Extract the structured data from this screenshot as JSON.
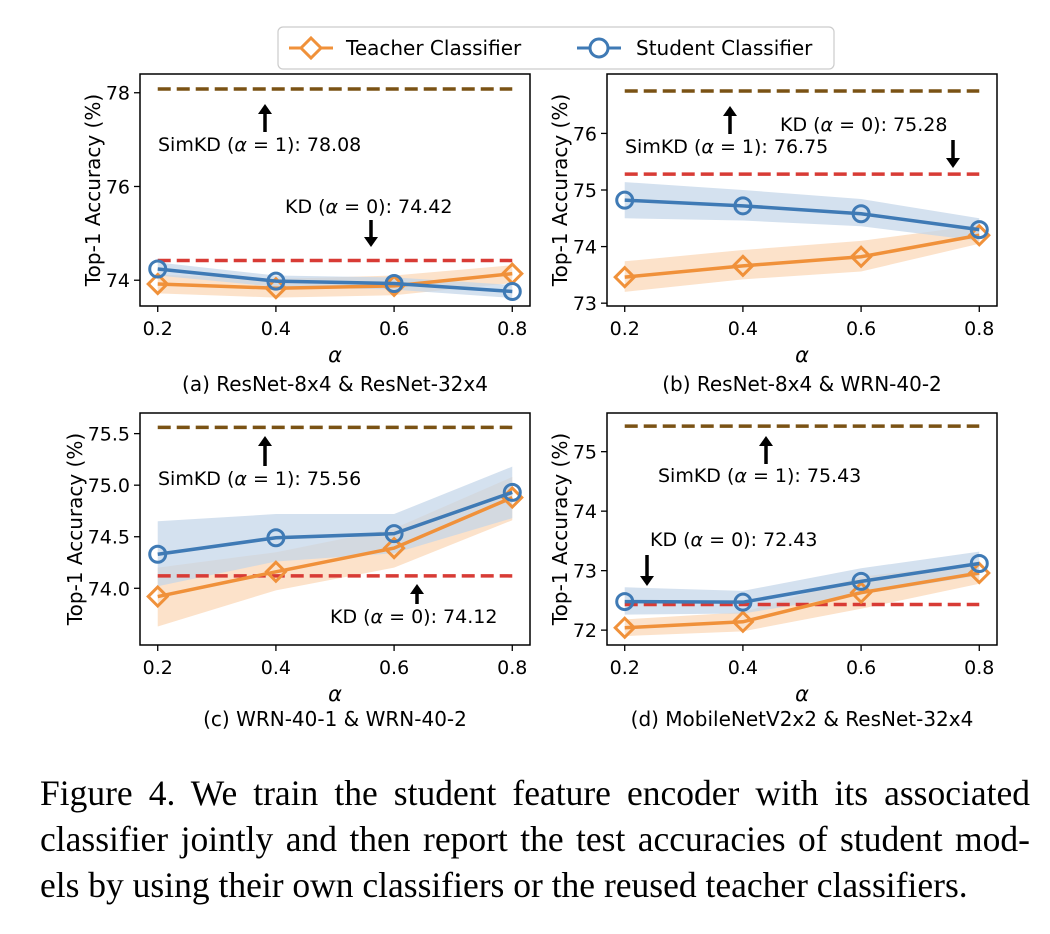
{
  "legend": {
    "teacher": "Teacher Classifier",
    "student": "Student Classifier"
  },
  "colors": {
    "teacher": "#f0913a",
    "student": "#3f7ab5",
    "simkd_line": "#7a5214",
    "kd_line": "#d83b35",
    "teacher_band": "#fbd8b8",
    "student_band": "#c4d6e9"
  },
  "chart_data": [
    {
      "type": "line",
      "caption": "(a) ResNet-8x4 & ResNet-32x4",
      "xlabel": "α",
      "ylabel": "Top-1 Accuracy (%)",
      "x": [
        0.2,
        0.4,
        0.6,
        0.8
      ],
      "xticks": [
        "0.2",
        "0.4",
        "0.6",
        "0.8"
      ],
      "yticks": [
        74,
        76,
        78
      ],
      "yticklabels": [
        "74",
        "76",
        "78"
      ],
      "ylim": [
        73.45,
        78.4
      ],
      "series": [
        {
          "name": "Teacher Classifier",
          "values": [
            73.92,
            73.83,
            73.88,
            74.14
          ],
          "band_lo": [
            73.72,
            73.63,
            73.68,
            73.94
          ],
          "band_hi": [
            74.12,
            74.03,
            74.1,
            74.32
          ]
        },
        {
          "name": "Student Classifier",
          "values": [
            74.24,
            73.98,
            73.93,
            73.76
          ],
          "band_lo": [
            74.1,
            73.86,
            73.8,
            73.62
          ],
          "band_hi": [
            74.38,
            74.1,
            74.06,
            73.9
          ]
        }
      ],
      "simkd_value": 78.08,
      "kd_value": 74.42,
      "simkd_label": "SimKD (α = 1): 78.08",
      "kd_label": "KD (α = 0): 74.42"
    },
    {
      "type": "line",
      "caption": "(b) ResNet-8x4 & WRN-40-2",
      "xlabel": "α",
      "ylabel": "Top-1 Accuracy (%)",
      "x": [
        0.2,
        0.4,
        0.6,
        0.8
      ],
      "xticks": [
        "0.2",
        "0.4",
        "0.6",
        "0.8"
      ],
      "yticks": [
        73,
        74,
        75,
        76
      ],
      "yticklabels": [
        "73",
        "74",
        "75",
        "76"
      ],
      "ylim": [
        72.95,
        77.05
      ],
      "series": [
        {
          "name": "Teacher Classifier",
          "values": [
            73.46,
            73.66,
            73.82,
            74.2
          ],
          "band_lo": [
            73.2,
            73.42,
            73.56,
            74.05
          ],
          "band_hi": [
            73.74,
            73.94,
            74.1,
            74.38
          ]
        },
        {
          "name": "Student Classifier",
          "values": [
            74.82,
            74.72,
            74.58,
            74.3
          ],
          "band_lo": [
            74.5,
            74.46,
            74.36,
            74.1
          ],
          "band_hi": [
            75.14,
            75.0,
            74.84,
            74.5
          ]
        }
      ],
      "simkd_value": 76.75,
      "kd_value": 75.28,
      "simkd_label": "SimKD (α = 1): 76.75",
      "kd_label": "KD (α = 0): 75.28"
    },
    {
      "type": "line",
      "caption": "(c) WRN-40-1 & WRN-40-2",
      "xlabel": "α",
      "ylabel": "Top-1 Accuracy (%)",
      "x": [
        0.2,
        0.4,
        0.6,
        0.8
      ],
      "xticks": [
        "0.2",
        "0.4",
        "0.6",
        "0.8"
      ],
      "yticks": [
        74.0,
        74.5,
        75.0,
        75.5
      ],
      "yticklabels": [
        "74.0",
        "74.5",
        "75.0",
        "75.5"
      ],
      "ylim": [
        73.45,
        75.7
      ],
      "series": [
        {
          "name": "Teacher Classifier",
          "values": [
            73.92,
            74.16,
            74.39,
            74.88
          ],
          "band_lo": [
            73.63,
            73.98,
            74.2,
            74.66
          ],
          "band_hi": [
            74.2,
            74.35,
            74.58,
            75.08
          ]
        },
        {
          "name": "Student Classifier",
          "values": [
            74.33,
            74.49,
            74.53,
            74.93
          ],
          "band_lo": [
            74.02,
            74.26,
            74.34,
            74.68
          ],
          "band_hi": [
            74.65,
            74.72,
            74.72,
            75.18
          ]
        }
      ],
      "simkd_value": 75.56,
      "kd_value": 74.12,
      "simkd_label": "SimKD (α = 1): 75.56",
      "kd_label": "KD (α = 0): 74.12"
    },
    {
      "type": "line",
      "caption": "(d) MobileNetV2x2 & ResNet-32x4",
      "xlabel": "α",
      "ylabel": "Top-1 Accuracy (%)",
      "x": [
        0.2,
        0.4,
        0.6,
        0.8
      ],
      "xticks": [
        "0.2",
        "0.4",
        "0.6",
        "0.8"
      ],
      "yticks": [
        72,
        73,
        74,
        75
      ],
      "yticklabels": [
        "72",
        "73",
        "74",
        "75"
      ],
      "ylim": [
        71.75,
        75.65
      ],
      "series": [
        {
          "name": "Teacher Classifier",
          "values": [
            72.04,
            72.14,
            72.63,
            72.96
          ],
          "band_lo": [
            71.9,
            71.98,
            72.36,
            72.78
          ],
          "band_hi": [
            72.18,
            72.3,
            72.9,
            73.12
          ]
        },
        {
          "name": "Student Classifier",
          "values": [
            72.48,
            72.47,
            72.82,
            73.12
          ],
          "band_lo": [
            72.26,
            72.28,
            72.6,
            72.92
          ],
          "band_hi": [
            72.72,
            72.66,
            73.04,
            73.32
          ]
        }
      ],
      "simkd_value": 75.43,
      "kd_value": 72.43,
      "simkd_label": "SimKD (α = 1): 75.43",
      "kd_label": "KD (α = 0): 72.43"
    }
  ],
  "caption": {
    "lines": [
      "Figure 4. We train the student feature encoder with its associated",
      "classifier jointly and then report the test accuracies of student mod-",
      "els by using their own classifiers or the reused teacher classifiers."
    ]
  }
}
